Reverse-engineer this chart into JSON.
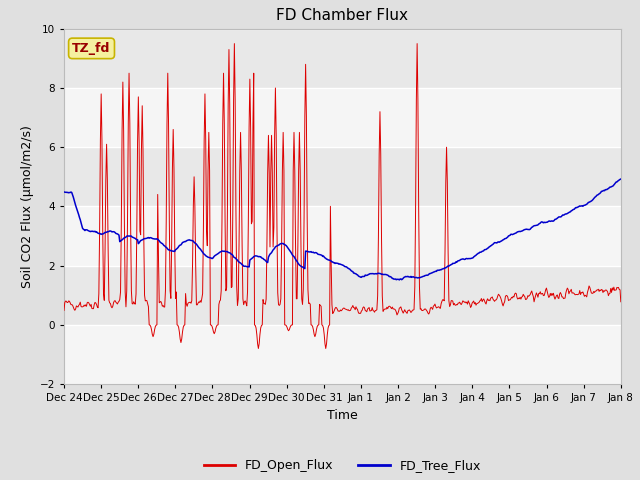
{
  "title": "FD Chamber Flux",
  "xlabel": "Time",
  "ylabel": "Soil CO2 Flux (μmol/m2/s)",
  "ylim": [
    -2,
    10
  ],
  "yticks": [
    -2,
    0,
    2,
    4,
    6,
    8,
    10
  ],
  "annotation_text": "TZ_fd",
  "annotation_bg": "#f5f0a0",
  "annotation_border": "#c8b400",
  "open_flux_color": "#dd0000",
  "tree_flux_color": "#0000cc",
  "fig_bg_color": "#e0e0e0",
  "plot_bg_color": "#e8e8e8",
  "legend_entries": [
    "FD_Open_Flux",
    "FD_Tree_Flux"
  ],
  "title_fontsize": 11,
  "label_fontsize": 9,
  "tick_fontsize": 7.5
}
